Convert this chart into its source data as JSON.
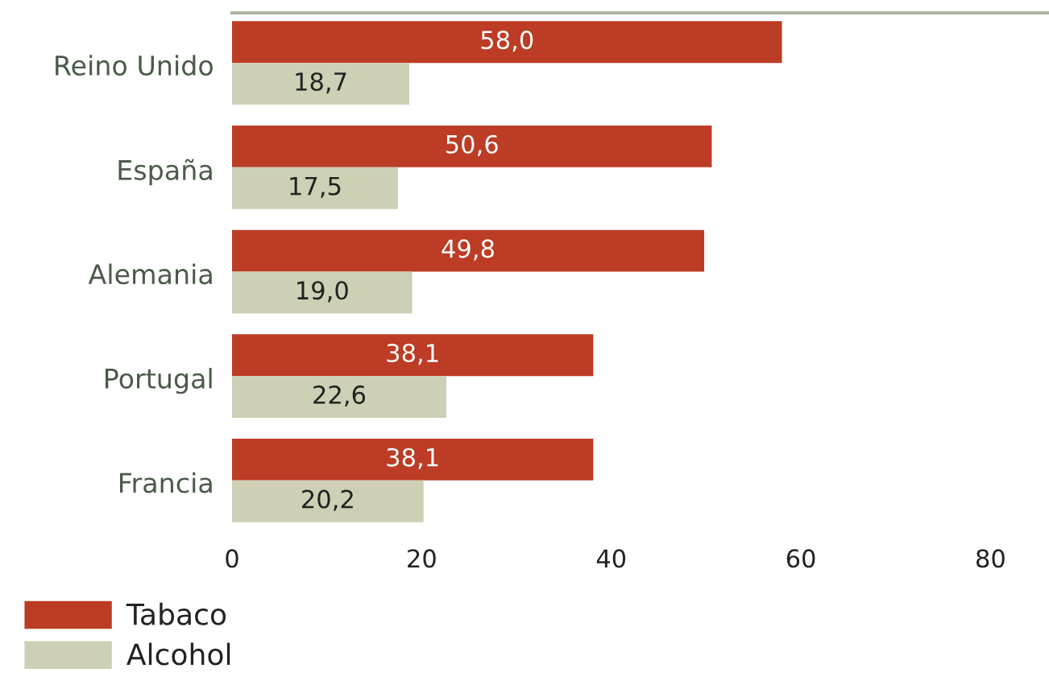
{
  "chart_data": {
    "type": "bar",
    "orientation": "horizontal",
    "categories": [
      "Reino Unido",
      "España",
      "Alemania",
      "Portugal",
      "Francia"
    ],
    "series": [
      {
        "name": "Tabaco",
        "color": "#bc3c25",
        "values": [
          58.0,
          50.6,
          49.8,
          38.1,
          38.1
        ],
        "value_labels": [
          "58,0",
          "50,6",
          "49,8",
          "38,1",
          "38,1"
        ]
      },
      {
        "name": "Alcohol",
        "color": "#cdd0b4",
        "values": [
          18.7,
          17.5,
          19.0,
          22.6,
          20.2
        ],
        "value_labels": [
          "18,7",
          "17,5",
          "19,0",
          "22,6",
          "20,2"
        ]
      }
    ],
    "xlim": [
      0,
      86
    ],
    "xticks": [
      0,
      20,
      40,
      60,
      80
    ],
    "grid": false,
    "legend": "bottom left"
  }
}
